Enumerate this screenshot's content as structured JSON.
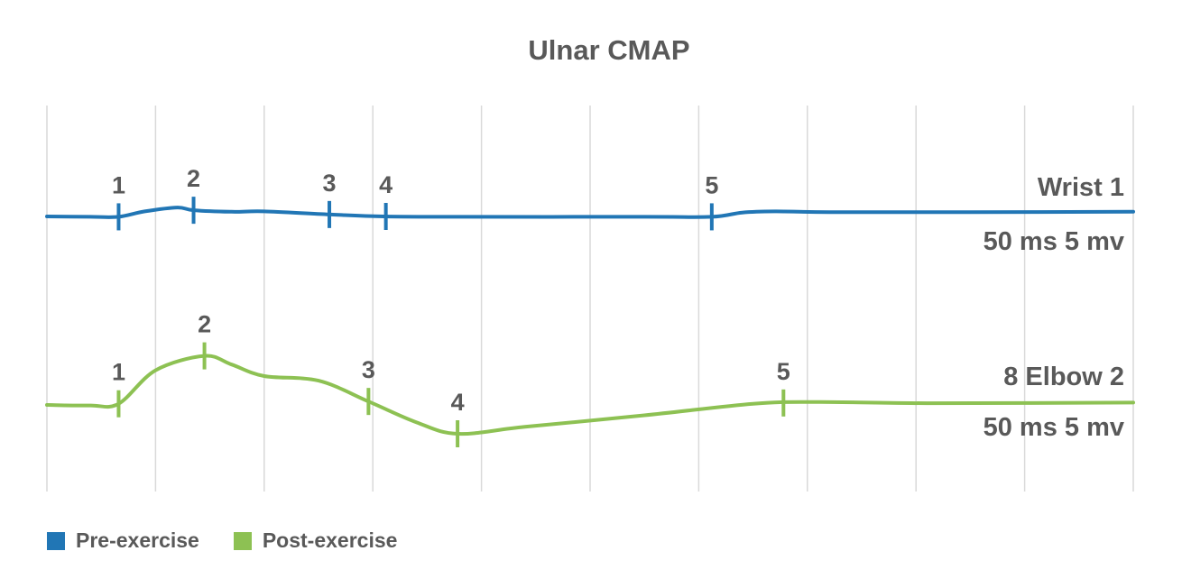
{
  "chart_data": {
    "type": "line",
    "title": "Ulnar CMAP",
    "xlim": [
      0,
      100
    ],
    "gridlines_x": [
      0,
      10,
      20,
      30,
      40,
      50,
      60,
      70,
      80,
      90,
      100
    ],
    "series": [
      {
        "name": "Pre-exercise",
        "color": "#2176b5",
        "label": "Wrist 1",
        "scale_label": "50 ms 5 mv",
        "points": [
          [
            0,
            0
          ],
          [
            4,
            -0.1
          ],
          [
            6.6,
            -0.1
          ],
          [
            9,
            1.3
          ],
          [
            12,
            2.3
          ],
          [
            13.5,
            1.6
          ],
          [
            17,
            1.2
          ],
          [
            20,
            1.3
          ],
          [
            26,
            0.5
          ],
          [
            31,
            0
          ],
          [
            38,
            -0.1
          ],
          [
            55,
            -0.1
          ],
          [
            61.2,
            -0.1
          ],
          [
            64,
            1.0
          ],
          [
            67,
            1.3
          ],
          [
            72,
            1.1
          ],
          [
            85,
            1.1
          ],
          [
            100,
            1.2
          ]
        ],
        "markers": [
          {
            "label": "1",
            "x": 6.6
          },
          {
            "label": "2",
            "x": 13.5
          },
          {
            "label": "3",
            "x": 26
          },
          {
            "label": "4",
            "x": 31.2
          },
          {
            "label": "5",
            "x": 61.2
          }
        ]
      },
      {
        "name": "Post-exercise",
        "color": "#8dc153",
        "label": "8 Elbow 2",
        "scale_label": "50 ms 5 mv",
        "points": [
          [
            0,
            0
          ],
          [
            4,
            -0.1
          ],
          [
            6.6,
            0.2
          ],
          [
            10,
            6
          ],
          [
            14.5,
            8.5
          ],
          [
            17,
            7
          ],
          [
            20,
            5
          ],
          [
            25,
            4.2
          ],
          [
            29.6,
            0.6
          ],
          [
            34,
            -3
          ],
          [
            37.8,
            -5
          ],
          [
            44,
            -3.8
          ],
          [
            55,
            -1.8
          ],
          [
            65,
            0.2
          ],
          [
            71,
            0.5
          ],
          [
            81,
            0.3
          ],
          [
            100,
            0.4
          ]
        ],
        "markers": [
          {
            "label": "1",
            "x": 6.6
          },
          {
            "label": "2",
            "x": 14.5
          },
          {
            "label": "3",
            "x": 29.6
          },
          {
            "label": "4",
            "x": 37.8
          },
          {
            "label": "5",
            "x": 67.8
          }
        ]
      }
    ]
  },
  "legend": {
    "items": [
      {
        "label": "Pre-exercise",
        "color": "#2176b5"
      },
      {
        "label": "Post-exercise",
        "color": "#8dc153"
      }
    ]
  }
}
